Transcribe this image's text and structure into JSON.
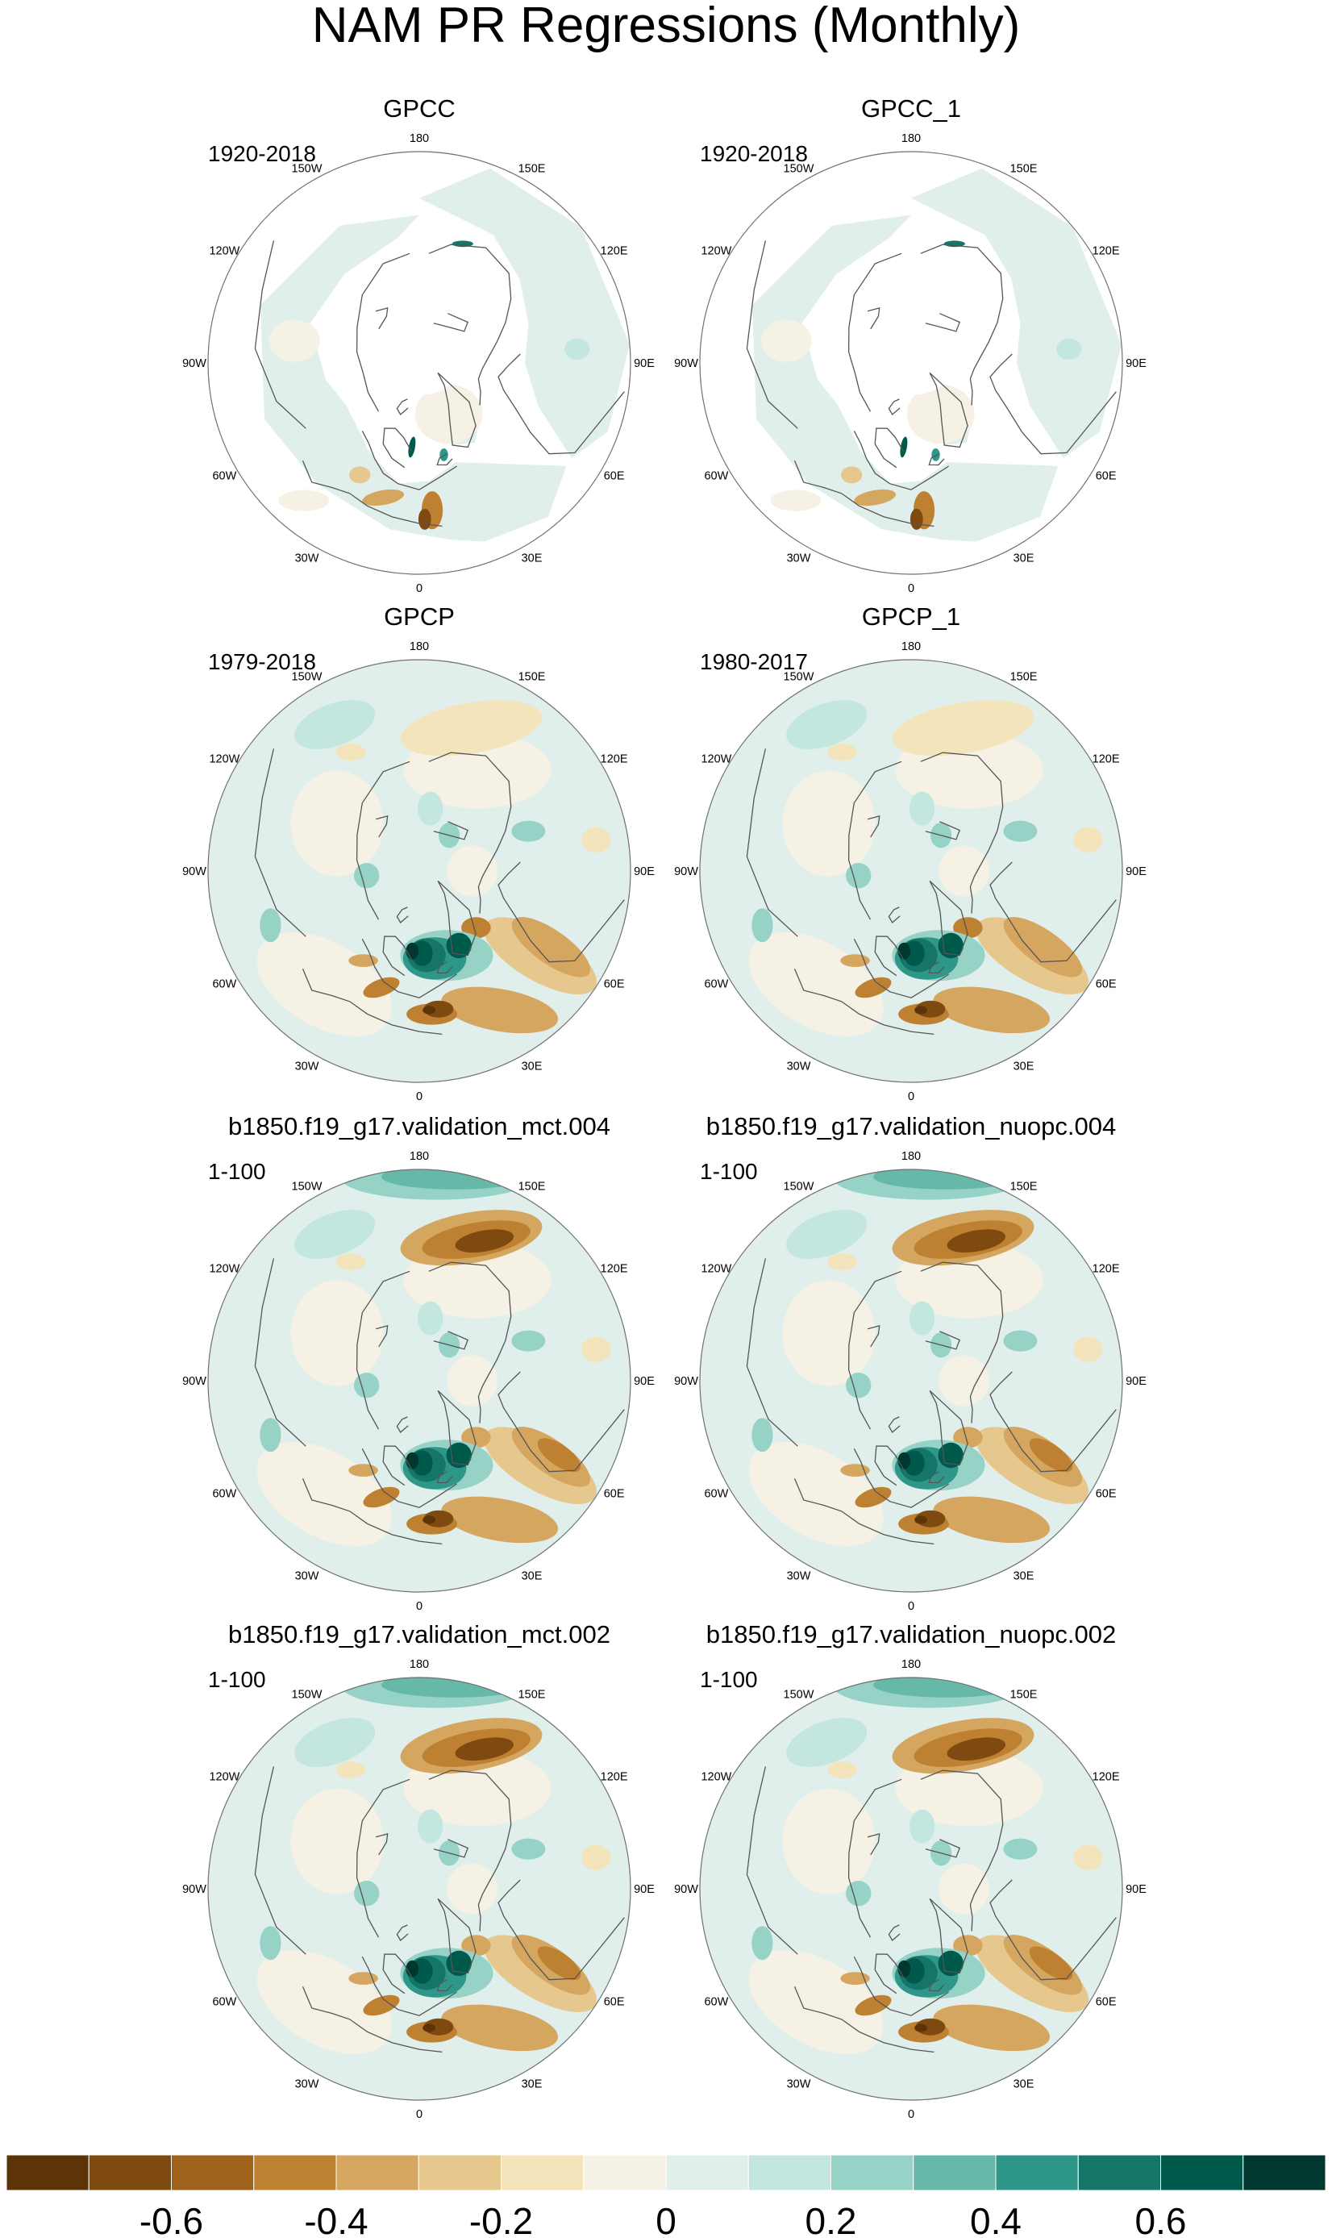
{
  "title": "NAM PR Regressions (Monthly)",
  "longitude_labels": [
    "180",
    "150E",
    "120E",
    "90E",
    "60E",
    "30E",
    "0",
    "30W",
    "60W",
    "90W",
    "120W",
    "150W"
  ],
  "panels": [
    {
      "title": "GPCC",
      "period": "1920-2018",
      "coverage": "land"
    },
    {
      "title": "GPCC_1",
      "period": "1920-2018",
      "coverage": "land"
    },
    {
      "title": "GPCP",
      "period": "1979-2018",
      "coverage": "global"
    },
    {
      "title": "GPCP_1",
      "period": "1980-2017",
      "coverage": "global"
    },
    {
      "title": "b1850.f19_g17.validation_mct.004",
      "period": "1-100",
      "coverage": "global"
    },
    {
      "title": "b1850.f19_g17.validation_nuopc.004",
      "period": "1-100",
      "coverage": "global"
    },
    {
      "title": "b1850.f19_g17.validation_mct.002",
      "period": "1-100",
      "coverage": "global"
    },
    {
      "title": "b1850.f19_g17.validation_nuopc.002",
      "period": "1-100",
      "coverage": "global"
    }
  ],
  "colorbar": {
    "colors": [
      "#5d3407",
      "#7f4a0f",
      "#a0621a",
      "#be8132",
      "#d5a660",
      "#e6c88e",
      "#f3e4bc",
      "#f5f1e4",
      "#e0efec",
      "#c3e7df",
      "#96d3c6",
      "#66b8a9",
      "#2f978a",
      "#147568",
      "#005a4c",
      "#00382f"
    ],
    "labels": [
      "-0.6",
      "-0.4",
      "-0.2",
      "0",
      "0.2",
      "0.4",
      "0.6"
    ]
  },
  "map_colors": {
    "land_outline": "#555555",
    "missing": "#ffffff"
  }
}
